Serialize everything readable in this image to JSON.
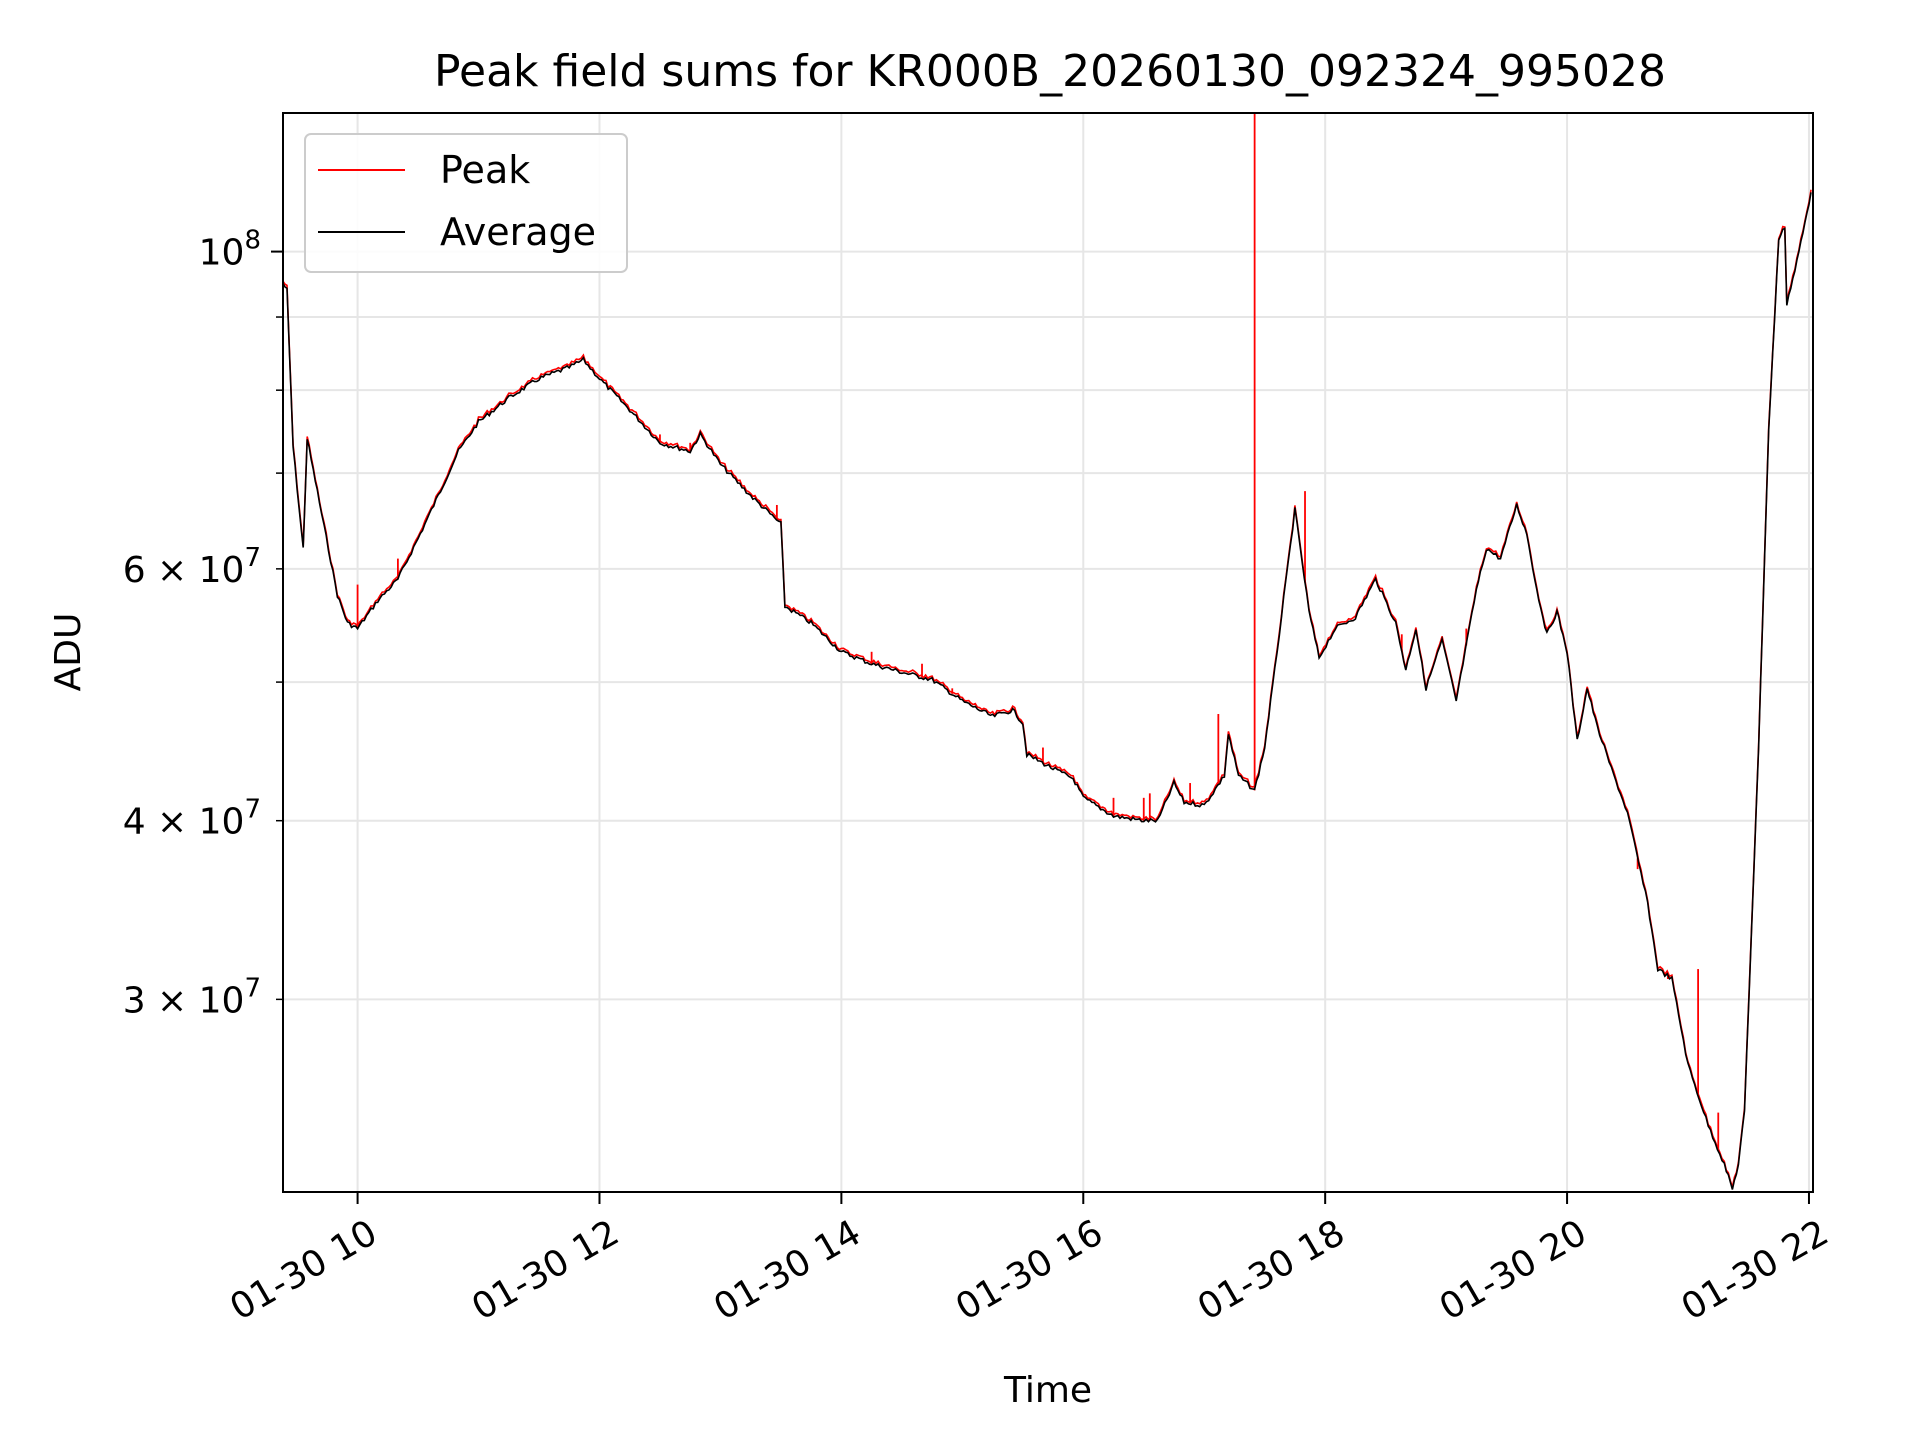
{
  "chart_data": {
    "type": "line",
    "title": "Peak field sums for KR000B_20260130_092324_995028",
    "xlabel": "Time",
    "ylabel": "ADU",
    "yscale": "log",
    "xlim": [
      "2026-01-30T09:23",
      "2026-01-30T22:02"
    ],
    "ylim": [
      22000000,
      125000000
    ],
    "grid": true,
    "legend_position": "top-left",
    "x_ticks": [
      {
        "t": "2026-01-30T10:00",
        "label": "01-30 10"
      },
      {
        "t": "2026-01-30T12:00",
        "label": "01-30 12"
      },
      {
        "t": "2026-01-30T14:00",
        "label": "01-30 14"
      },
      {
        "t": "2026-01-30T16:00",
        "label": "01-30 16"
      },
      {
        "t": "2026-01-30T18:00",
        "label": "01-30 18"
      },
      {
        "t": "2026-01-30T20:00",
        "label": "01-30 20"
      },
      {
        "t": "2026-01-30T22:00",
        "label": "01-30 22"
      }
    ],
    "y_ticks": [
      {
        "v": 30000000,
        "mant": "3",
        "exp": "7",
        "major": false
      },
      {
        "v": 40000000,
        "mant": "4",
        "exp": "7",
        "major": false
      },
      {
        "v": 50000000,
        "mant": "",
        "exp": "",
        "major": false
      },
      {
        "v": 60000000,
        "mant": "6",
        "exp": "7",
        "major": false
      },
      {
        "v": 70000000,
        "mant": "",
        "exp": "",
        "major": false
      },
      {
        "v": 80000000,
        "mant": "",
        "exp": "",
        "major": false
      },
      {
        "v": 90000000,
        "mant": "",
        "exp": "",
        "major": false
      },
      {
        "v": 100000000,
        "mant": "10",
        "exp": "8",
        "major": true
      }
    ],
    "series": [
      {
        "name": "Average",
        "color": "#000000",
        "points": [
          [
            "2026-01-30T09:23",
            95000000
          ],
          [
            "2026-01-30T09:25",
            94000000
          ],
          [
            "2026-01-30T09:28",
            73000000
          ],
          [
            "2026-01-30T09:33",
            62000000
          ],
          [
            "2026-01-30T09:35",
            74000000
          ],
          [
            "2026-01-30T09:40",
            68000000
          ],
          [
            "2026-01-30T09:50",
            57500000
          ],
          [
            "2026-01-30T09:55",
            55000000
          ],
          [
            "2026-01-30T10:00",
            54500000
          ],
          [
            "2026-01-30T10:10",
            57000000
          ],
          [
            "2026-01-30T10:20",
            59000000
          ],
          [
            "2026-01-30T10:30",
            63000000
          ],
          [
            "2026-01-30T10:40",
            67500000
          ],
          [
            "2026-01-30T10:50",
            72500000
          ],
          [
            "2026-01-30T11:00",
            76000000
          ],
          [
            "2026-01-30T11:15",
            79000000
          ],
          [
            "2026-01-30T11:30",
            81500000
          ],
          [
            "2026-01-30T11:45",
            83000000
          ],
          [
            "2026-01-30T11:52",
            84000000
          ],
          [
            "2026-01-30T12:00",
            81500000
          ],
          [
            "2026-01-30T12:15",
            77500000
          ],
          [
            "2026-01-30T12:30",
            73500000
          ],
          [
            "2026-01-30T12:45",
            72500000
          ],
          [
            "2026-01-30T12:50",
            74500000
          ],
          [
            "2026-01-30T13:00",
            71000000
          ],
          [
            "2026-01-30T13:15",
            67500000
          ],
          [
            "2026-01-30T13:30",
            64500000
          ],
          [
            "2026-01-30T13:32",
            56500000
          ],
          [
            "2026-01-30T13:45",
            55000000
          ],
          [
            "2026-01-30T14:00",
            52500000
          ],
          [
            "2026-01-30T14:15",
            51500000
          ],
          [
            "2026-01-30T14:30",
            50800000
          ],
          [
            "2026-01-30T14:45",
            50200000
          ],
          [
            "2026-01-30T15:00",
            48500000
          ],
          [
            "2026-01-30T15:15",
            47300000
          ],
          [
            "2026-01-30T15:25",
            47800000
          ],
          [
            "2026-01-30T15:30",
            46800000
          ],
          [
            "2026-01-30T15:32",
            44500000
          ],
          [
            "2026-01-30T15:45",
            43500000
          ],
          [
            "2026-01-30T15:55",
            42800000
          ],
          [
            "2026-01-30T16:00",
            41500000
          ],
          [
            "2026-01-30T16:15",
            40300000
          ],
          [
            "2026-01-30T16:30",
            40000000
          ],
          [
            "2026-01-30T16:37",
            40000000
          ],
          [
            "2026-01-30T16:45",
            42500000
          ],
          [
            "2026-01-30T16:50",
            41200000
          ],
          [
            "2026-01-30T17:00",
            41000000
          ],
          [
            "2026-01-30T17:10",
            43000000
          ],
          [
            "2026-01-30T17:12",
            46000000
          ],
          [
            "2026-01-30T17:17",
            43000000
          ],
          [
            "2026-01-30T17:25",
            42000000
          ],
          [
            "2026-01-30T17:30",
            45000000
          ],
          [
            "2026-01-30T17:35",
            51000000
          ],
          [
            "2026-01-30T17:45",
            66000000
          ],
          [
            "2026-01-30T17:52",
            56000000
          ],
          [
            "2026-01-30T17:57",
            52000000
          ],
          [
            "2026-01-30T18:05",
            54500000
          ],
          [
            "2026-01-30T18:15",
            55500000
          ],
          [
            "2026-01-30T18:25",
            59000000
          ],
          [
            "2026-01-30T18:35",
            55000000
          ],
          [
            "2026-01-30T18:40",
            51000000
          ],
          [
            "2026-01-30T18:45",
            54500000
          ],
          [
            "2026-01-30T18:50",
            49500000
          ],
          [
            "2026-01-30T18:58",
            53500000
          ],
          [
            "2026-01-30T19:05",
            48500000
          ],
          [
            "2026-01-30T19:15",
            58000000
          ],
          [
            "2026-01-30T19:20",
            62000000
          ],
          [
            "2026-01-30T19:27",
            61000000
          ],
          [
            "2026-01-30T19:35",
            66500000
          ],
          [
            "2026-01-30T19:40",
            63500000
          ],
          [
            "2026-01-30T19:45",
            58000000
          ],
          [
            "2026-01-30T19:50",
            54000000
          ],
          [
            "2026-01-30T19:55",
            56000000
          ],
          [
            "2026-01-30T20:00",
            52500000
          ],
          [
            "2026-01-30T20:05",
            45500000
          ],
          [
            "2026-01-30T20:10",
            49500000
          ],
          [
            "2026-01-30T20:15",
            46500000
          ],
          [
            "2026-01-30T20:22",
            43500000
          ],
          [
            "2026-01-30T20:30",
            40500000
          ],
          [
            "2026-01-30T20:40",
            35000000
          ],
          [
            "2026-01-30T20:45",
            31500000
          ],
          [
            "2026-01-30T20:52",
            31000000
          ],
          [
            "2026-01-30T21:00",
            27000000
          ],
          [
            "2026-01-30T21:10",
            24500000
          ],
          [
            "2026-01-30T21:18",
            23000000
          ],
          [
            "2026-01-30T21:22",
            22100000
          ],
          [
            "2026-01-30T21:25",
            23000000
          ],
          [
            "2026-01-30T21:28",
            25000000
          ],
          [
            "2026-01-30T21:35",
            45000000
          ],
          [
            "2026-01-30T21:40",
            75000000
          ],
          [
            "2026-01-30T21:45",
            102000000
          ],
          [
            "2026-01-30T21:48",
            104000000
          ],
          [
            "2026-01-30T21:49",
            92000000
          ],
          [
            "2026-01-30T21:53",
            97000000
          ],
          [
            "2026-01-30T21:57",
            103000000
          ],
          [
            "2026-01-30T22:01",
            110000000
          ]
        ]
      },
      {
        "name": "Peak",
        "color": "#ff0000",
        "spikes": [
          [
            "2026-01-30T10:00",
            58500000
          ],
          [
            "2026-01-30T10:20",
            61000000
          ],
          [
            "2026-01-30T12:30",
            74500000
          ],
          [
            "2026-01-30T12:45",
            73500000
          ],
          [
            "2026-01-30T13:28",
            66500000
          ],
          [
            "2026-01-30T14:15",
            52500000
          ],
          [
            "2026-01-30T14:40",
            51500000
          ],
          [
            "2026-01-30T14:55",
            49500000
          ],
          [
            "2026-01-30T15:40",
            45000000
          ],
          [
            "2026-01-30T16:15",
            41500000
          ],
          [
            "2026-01-30T16:30",
            41500000
          ],
          [
            "2026-01-30T16:33",
            41800000
          ],
          [
            "2026-01-30T16:53",
            42500000
          ],
          [
            "2026-01-30T17:07",
            47500000
          ],
          [
            "2026-01-30T17:25",
            125000000
          ],
          [
            "2026-01-30T17:50",
            68000000
          ],
          [
            "2026-01-30T18:38",
            54000000
          ],
          [
            "2026-01-30T19:10",
            54500000
          ],
          [
            "2026-01-30T20:35",
            37000000
          ],
          [
            "2026-01-30T20:50",
            31000000
          ],
          [
            "2026-01-30T21:05",
            31500000
          ],
          [
            "2026-01-30T21:15",
            25000000
          ]
        ]
      }
    ]
  }
}
